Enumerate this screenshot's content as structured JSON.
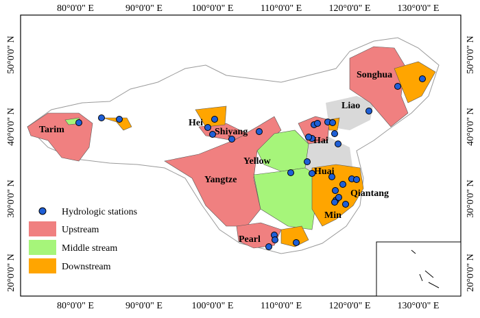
{
  "longitude_labels": [
    "80°0'0\" E",
    "90°0'0\" E",
    "100°0'0\" E",
    "110°0'0\" E",
    "120°0'0\" E",
    "130°0'0\" E"
  ],
  "latitude_labels": [
    "50°0'0\" N",
    "40°0'0\" N",
    "30°0'0\" N",
    "20°0'0\" N"
  ],
  "basins": [
    "Tarim",
    "Songhua",
    "Liao",
    "Hei",
    "Shiyang",
    "Hai",
    "Yellow",
    "Huai",
    "Yangtze",
    "Qiantang",
    "Min",
    "Pearl"
  ],
  "legend": {
    "stations": "Hydrologic stations",
    "upstream": "Upstream",
    "middle": "Middle stream",
    "downstream": "Downstream"
  }
}
